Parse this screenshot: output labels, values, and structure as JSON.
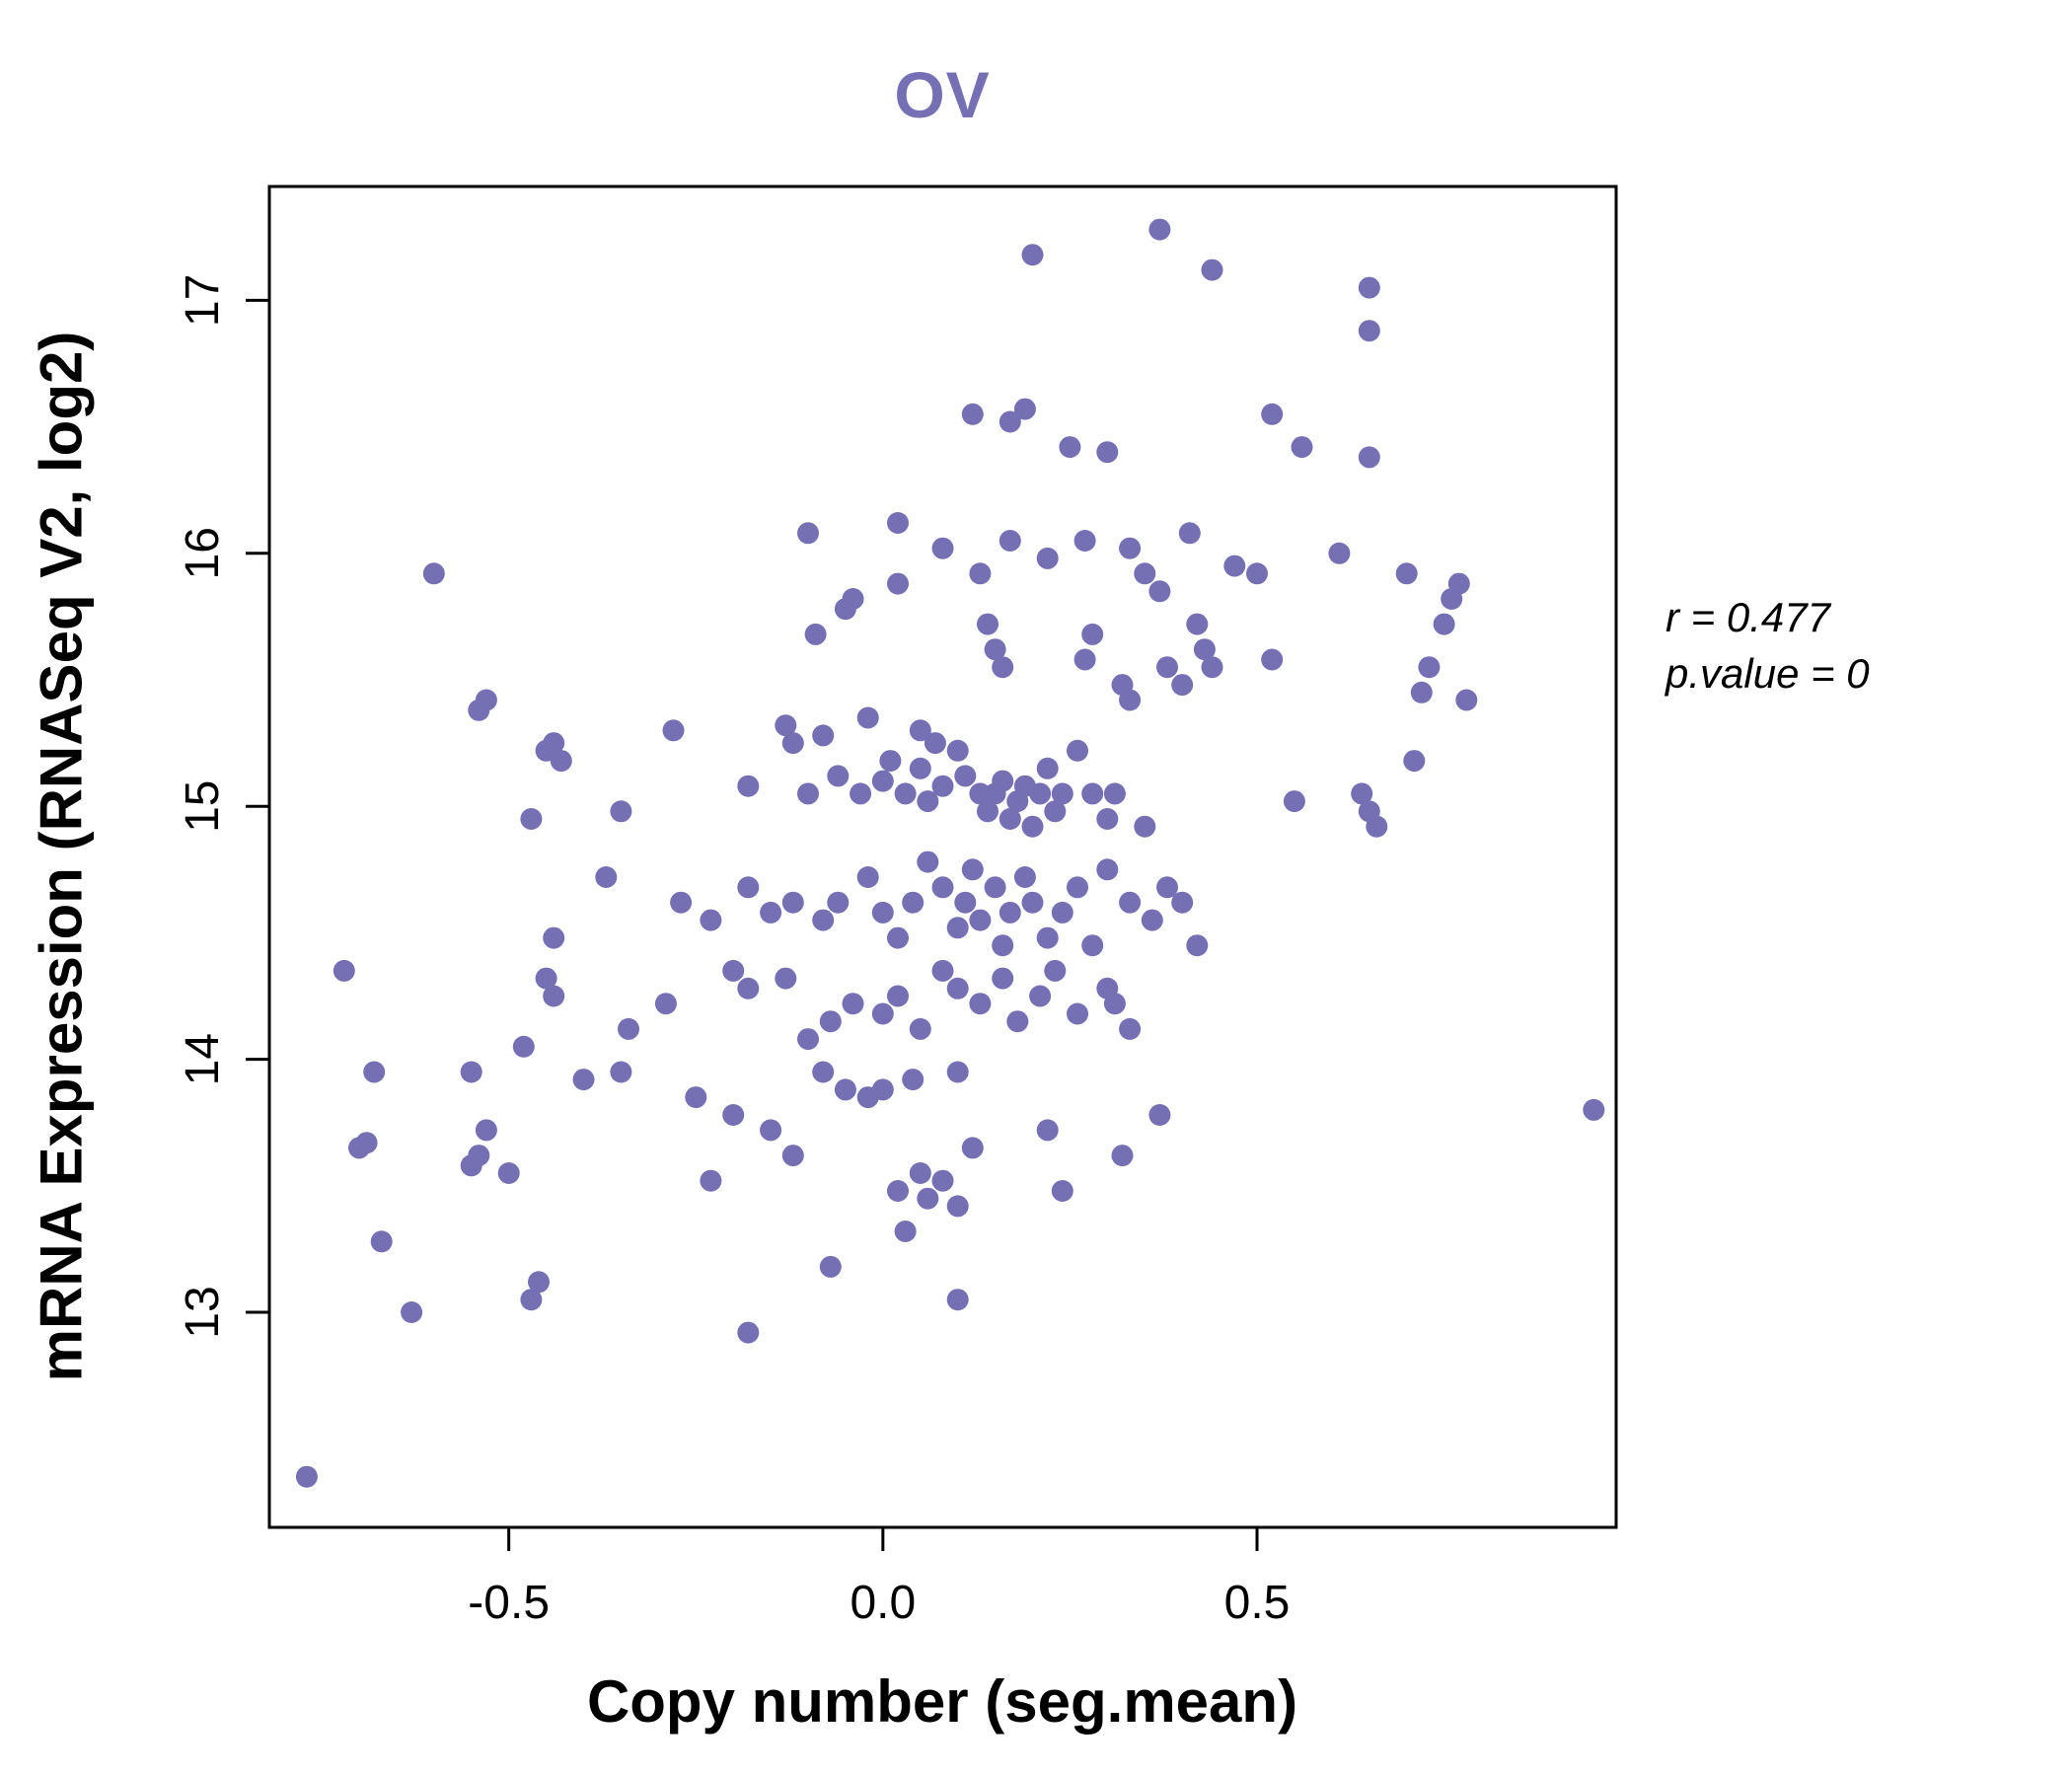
{
  "title": "OV",
  "annotation": {
    "line1": "r = 0.477",
    "line2": "p.value = 0"
  },
  "chart_data": {
    "type": "scatter",
    "title": "OV",
    "xlabel": "Copy number (seg.mean)",
    "ylabel": "mRNA Expression (RNASeq V2, log2)",
    "xlim": [
      -0.82,
      0.98
    ],
    "ylim": [
      12.15,
      17.45
    ],
    "x_ticks": [
      -0.5,
      0.0,
      0.5
    ],
    "x_tick_labels": [
      "-0.5",
      "0.0",
      "0.5"
    ],
    "y_ticks": [
      13,
      14,
      15,
      16,
      17
    ],
    "y_tick_labels": [
      "13",
      "14",
      "15",
      "16",
      "17"
    ],
    "grid": false,
    "legend": "none",
    "point_color": "#7570B3",
    "title_color": "#7570B3",
    "axis_color": "#000000",
    "annotations": [
      "r = 0.477",
      "p.value = 0"
    ],
    "points": [
      [
        0.2,
        17.18
      ],
      [
        0.37,
        17.28
      ],
      [
        0.44,
        17.12
      ],
      [
        0.65,
        17.05
      ],
      [
        0.65,
        16.88
      ],
      [
        0.52,
        16.55
      ],
      [
        0.17,
        16.52
      ],
      [
        0.12,
        16.55
      ],
      [
        0.19,
        16.57
      ],
      [
        0.56,
        16.42
      ],
      [
        0.25,
        16.42
      ],
      [
        0.3,
        16.4
      ],
      [
        0.65,
        16.38
      ],
      [
        -0.6,
        15.92
      ],
      [
        -0.1,
        16.08
      ],
      [
        0.02,
        16.12
      ],
      [
        0.08,
        16.02
      ],
      [
        0.17,
        16.05
      ],
      [
        0.22,
        15.98
      ],
      [
        0.27,
        16.05
      ],
      [
        0.33,
        16.02
      ],
      [
        0.35,
        15.92
      ],
      [
        0.37,
        15.85
      ],
      [
        0.41,
        16.08
      ],
      [
        0.47,
        15.95
      ],
      [
        0.5,
        15.92
      ],
      [
        0.61,
        16.0
      ],
      [
        0.7,
        15.92
      ],
      [
        0.76,
        15.82
      ],
      [
        0.77,
        15.88
      ],
      [
        0.02,
        15.88
      ],
      [
        -0.04,
        15.82
      ],
      [
        0.13,
        15.92
      ],
      [
        0.75,
        15.72
      ],
      [
        -0.09,
        15.68
      ],
      [
        -0.05,
        15.78
      ],
      [
        0.14,
        15.72
      ],
      [
        0.15,
        15.62
      ],
      [
        0.16,
        15.55
      ],
      [
        0.28,
        15.68
      ],
      [
        0.27,
        15.58
      ],
      [
        0.32,
        15.48
      ],
      [
        0.33,
        15.42
      ],
      [
        0.38,
        15.55
      ],
      [
        0.4,
        15.48
      ],
      [
        0.43,
        15.62
      ],
      [
        0.42,
        15.72
      ],
      [
        0.44,
        15.55
      ],
      [
        0.52,
        15.58
      ],
      [
        0.73,
        15.55
      ],
      [
        0.72,
        15.45
      ],
      [
        0.78,
        15.42
      ],
      [
        -0.53,
        15.42
      ],
      [
        -0.54,
        15.38
      ],
      [
        -0.44,
        15.25
      ],
      [
        -0.45,
        15.22
      ],
      [
        -0.43,
        15.18
      ],
      [
        -0.28,
        15.3
      ],
      [
        -0.13,
        15.32
      ],
      [
        -0.12,
        15.25
      ],
      [
        -0.08,
        15.28
      ],
      [
        -0.02,
        15.35
      ],
      [
        0.05,
        15.3
      ],
      [
        0.07,
        15.25
      ],
      [
        0.01,
        15.18
      ],
      [
        -0.18,
        15.08
      ],
      [
        -0.1,
        15.05
      ],
      [
        -0.06,
        15.12
      ],
      [
        -0.03,
        15.05
      ],
      [
        0.0,
        15.1
      ],
      [
        0.03,
        15.05
      ],
      [
        0.05,
        15.15
      ],
      [
        0.06,
        15.02
      ],
      [
        0.08,
        15.08
      ],
      [
        0.1,
        15.22
      ],
      [
        0.11,
        15.12
      ],
      [
        0.13,
        15.05
      ],
      [
        0.14,
        14.98
      ],
      [
        0.15,
        15.05
      ],
      [
        0.16,
        15.1
      ],
      [
        0.17,
        14.95
      ],
      [
        0.18,
        15.02
      ],
      [
        0.19,
        15.08
      ],
      [
        0.2,
        14.92
      ],
      [
        0.21,
        15.05
      ],
      [
        0.22,
        15.15
      ],
      [
        0.23,
        14.98
      ],
      [
        0.24,
        15.05
      ],
      [
        0.26,
        15.22
      ],
      [
        0.28,
        15.05
      ],
      [
        0.3,
        14.95
      ],
      [
        0.31,
        15.05
      ],
      [
        0.35,
        14.92
      ],
      [
        0.55,
        15.02
      ],
      [
        0.64,
        15.05
      ],
      [
        0.65,
        14.98
      ],
      [
        0.66,
        14.92
      ],
      [
        0.71,
        15.18
      ],
      [
        -0.47,
        14.95
      ],
      [
        -0.35,
        14.98
      ],
      [
        -0.37,
        14.72
      ],
      [
        -0.27,
        14.62
      ],
      [
        -0.23,
        14.55
      ],
      [
        -0.18,
        14.68
      ],
      [
        -0.15,
        14.58
      ],
      [
        -0.12,
        14.62
      ],
      [
        -0.08,
        14.55
      ],
      [
        -0.06,
        14.62
      ],
      [
        -0.02,
        14.72
      ],
      [
        0.0,
        14.58
      ],
      [
        0.02,
        14.48
      ],
      [
        0.04,
        14.62
      ],
      [
        0.06,
        14.78
      ],
      [
        0.08,
        14.68
      ],
      [
        0.1,
        14.52
      ],
      [
        0.11,
        14.62
      ],
      [
        0.12,
        14.75
      ],
      [
        0.13,
        14.55
      ],
      [
        0.15,
        14.68
      ],
      [
        0.16,
        14.45
      ],
      [
        0.17,
        14.58
      ],
      [
        0.19,
        14.72
      ],
      [
        0.2,
        14.62
      ],
      [
        0.22,
        14.48
      ],
      [
        0.24,
        14.58
      ],
      [
        0.26,
        14.68
      ],
      [
        0.28,
        14.45
      ],
      [
        0.3,
        14.75
      ],
      [
        0.33,
        14.62
      ],
      [
        0.36,
        14.55
      ],
      [
        0.38,
        14.68
      ],
      [
        0.4,
        14.62
      ],
      [
        0.42,
        14.45
      ],
      [
        -0.44,
        14.48
      ],
      [
        -0.72,
        14.35
      ],
      [
        -0.68,
        13.95
      ],
      [
        -0.45,
        14.32
      ],
      [
        -0.44,
        14.25
      ],
      [
        -0.34,
        14.12
      ],
      [
        -0.29,
        14.22
      ],
      [
        -0.2,
        14.35
      ],
      [
        -0.18,
        14.28
      ],
      [
        -0.13,
        14.32
      ],
      [
        -0.1,
        14.08
      ],
      [
        -0.07,
        14.15
      ],
      [
        -0.04,
        14.22
      ],
      [
        0.0,
        14.18
      ],
      [
        0.02,
        14.25
      ],
      [
        0.05,
        14.12
      ],
      [
        0.08,
        14.35
      ],
      [
        0.1,
        14.28
      ],
      [
        0.13,
        14.22
      ],
      [
        0.16,
        14.32
      ],
      [
        0.18,
        14.15
      ],
      [
        0.21,
        14.25
      ],
      [
        0.23,
        14.35
      ],
      [
        0.26,
        14.18
      ],
      [
        0.3,
        14.28
      ],
      [
        0.31,
        14.22
      ],
      [
        0.33,
        14.12
      ],
      [
        -0.48,
        14.05
      ],
      [
        -0.4,
        13.92
      ],
      [
        -0.35,
        13.95
      ],
      [
        -0.7,
        13.65
      ],
      [
        -0.69,
        13.67
      ],
      [
        -0.55,
        13.95
      ],
      [
        -0.54,
        13.62
      ],
      [
        -0.55,
        13.58
      ],
      [
        -0.53,
        13.72
      ],
      [
        -0.5,
        13.55
      ],
      [
        -0.25,
        13.85
      ],
      [
        -0.2,
        13.78
      ],
      [
        -0.15,
        13.72
      ],
      [
        -0.12,
        13.62
      ],
      [
        -0.08,
        13.95
      ],
      [
        -0.05,
        13.88
      ],
      [
        -0.02,
        13.85
      ],
      [
        0.0,
        13.88
      ],
      [
        0.04,
        13.92
      ],
      [
        0.1,
        13.95
      ],
      [
        0.12,
        13.65
      ],
      [
        0.22,
        13.72
      ],
      [
        0.37,
        13.78
      ],
      [
        0.32,
        13.62
      ],
      [
        0.05,
        13.55
      ],
      [
        0.02,
        13.48
      ],
      [
        0.08,
        13.52
      ],
      [
        -0.23,
        13.52
      ],
      [
        -0.63,
        13.0
      ],
      [
        -0.67,
        13.28
      ],
      [
        -0.46,
        13.12
      ],
      [
        -0.47,
        13.05
      ],
      [
        -0.07,
        13.18
      ],
      [
        0.03,
        13.32
      ],
      [
        0.06,
        13.45
      ],
      [
        0.1,
        13.42
      ],
      [
        0.24,
        13.48
      ],
      [
        0.1,
        13.05
      ],
      [
        -0.18,
        12.92
      ],
      [
        -0.77,
        12.35
      ],
      [
        0.95,
        13.8
      ]
    ]
  }
}
